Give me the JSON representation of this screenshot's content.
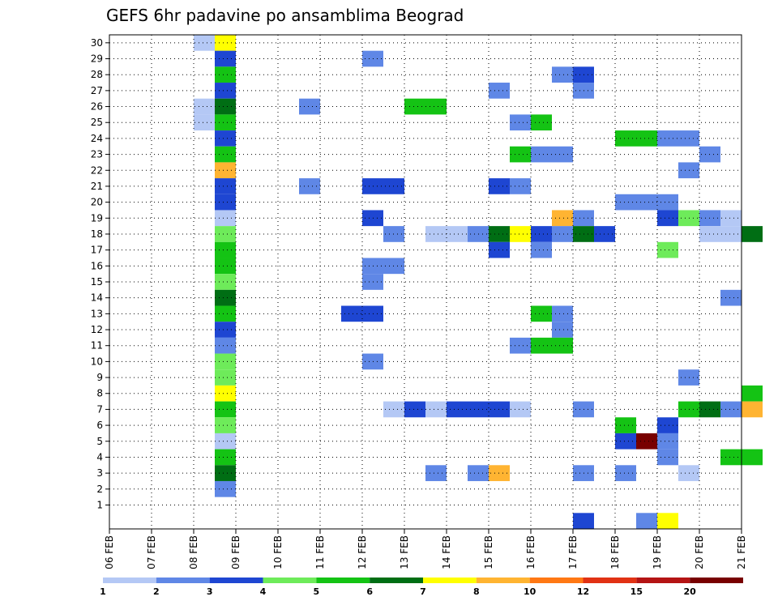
{
  "chart_data": {
    "type": "heatmap",
    "title": "GEFS 6hr padavine po ansamblima Beograd",
    "x_tick_labels": [
      "06 FEB",
      "07 FEB",
      "08 FEB",
      "09 FEB",
      "10 FEB",
      "11 FEB",
      "12 FEB",
      "13 FEB",
      "14 FEB",
      "15 FEB",
      "16 FEB",
      "17 FEB",
      "18 FEB",
      "19 FEB",
      "20 FEB",
      "21 FEB"
    ],
    "y_tick_labels": [
      "1",
      "2",
      "3",
      "4",
      "5",
      "6",
      "7",
      "8",
      "9",
      "10",
      "11",
      "12",
      "13",
      "14",
      "15",
      "16",
      "17",
      "18",
      "19",
      "20",
      "21",
      "22",
      "23",
      "24",
      "25",
      "26",
      "27",
      "28",
      "29",
      "30"
    ],
    "xlim": [
      0,
      60
    ],
    "ylim": [
      -0.5,
      30.5
    ],
    "grid": true,
    "colorbar": {
      "placement": "bottom",
      "labels": [
        "1",
        "2",
        "3",
        "4",
        "5",
        "6",
        "7",
        "8",
        "10",
        "12",
        "15",
        "20"
      ],
      "colors": [
        "#b4c8f5",
        "#5f87e6",
        "#1e46d2",
        "#6eeb5a",
        "#14c314",
        "#006e14",
        "#ffff00",
        "#ffb432",
        "#ff7814",
        "#e13214",
        "#b41414",
        "#780000"
      ]
    },
    "cells": [
      [
        4,
        30,
        1
      ],
      [
        5,
        30,
        7
      ],
      [
        22,
        0,
        3
      ],
      [
        25,
        0,
        2
      ],
      [
        26,
        0,
        7
      ],
      [
        5,
        29,
        3
      ],
      [
        12,
        29,
        2
      ],
      [
        59,
        29,
        6
      ],
      [
        5,
        28,
        5
      ],
      [
        21,
        28,
        2
      ],
      [
        22,
        28,
        3
      ],
      [
        5,
        27,
        3
      ],
      [
        18,
        27,
        2
      ],
      [
        22,
        27,
        2
      ],
      [
        4,
        26,
        1
      ],
      [
        5,
        26,
        6
      ],
      [
        9,
        26,
        2
      ],
      [
        14,
        26,
        5
      ],
      [
        15,
        26,
        5
      ],
      [
        4,
        25,
        1
      ],
      [
        5,
        25,
        5
      ],
      [
        19,
        25,
        2
      ],
      [
        20,
        25,
        5
      ],
      [
        5,
        24,
        3
      ],
      [
        24,
        24,
        5
      ],
      [
        25,
        24,
        5
      ],
      [
        26,
        24,
        2
      ],
      [
        27,
        24,
        2
      ],
      [
        5,
        23,
        5
      ],
      [
        19,
        23,
        5
      ],
      [
        20,
        23,
        2
      ],
      [
        21,
        23,
        2
      ],
      [
        28,
        23,
        2
      ],
      [
        5,
        22,
        8
      ],
      [
        27,
        22,
        2
      ],
      [
        5,
        21,
        3
      ],
      [
        9,
        21,
        2
      ],
      [
        12,
        21,
        3
      ],
      [
        13,
        21,
        3
      ],
      [
        18,
        21,
        3
      ],
      [
        19,
        21,
        2
      ],
      [
        5,
        20,
        3
      ],
      [
        24,
        20,
        2
      ],
      [
        25,
        20,
        2
      ],
      [
        26,
        20,
        2
      ],
      [
        5,
        19,
        1
      ],
      [
        12,
        19,
        3
      ],
      [
        21,
        19,
        8
      ],
      [
        22,
        19,
        2
      ],
      [
        26,
        19,
        3
      ],
      [
        27,
        19,
        4
      ],
      [
        28,
        19,
        2
      ],
      [
        29,
        19,
        1
      ],
      [
        5,
        18,
        4
      ],
      [
        13,
        18,
        2
      ],
      [
        15,
        18,
        1
      ],
      [
        16,
        18,
        1
      ],
      [
        17,
        18,
        2
      ],
      [
        18,
        18,
        6
      ],
      [
        19,
        18,
        7
      ],
      [
        20,
        18,
        3
      ],
      [
        21,
        18,
        2
      ],
      [
        22,
        18,
        6
      ],
      [
        23,
        18,
        3
      ],
      [
        28,
        18,
        1
      ],
      [
        29,
        18,
        1
      ],
      [
        30,
        18,
        6
      ],
      [
        5,
        17,
        5
      ],
      [
        18,
        17,
        3
      ],
      [
        20,
        17,
        2
      ],
      [
        26,
        17,
        4
      ],
      [
        5,
        16,
        5
      ],
      [
        12,
        16,
        2
      ],
      [
        13,
        16,
        2
      ],
      [
        5,
        15,
        4
      ],
      [
        12,
        15,
        2
      ],
      [
        5,
        14,
        6
      ],
      [
        29,
        14,
        2
      ],
      [
        5,
        13,
        5
      ],
      [
        11,
        13,
        3
      ],
      [
        12,
        13,
        3
      ],
      [
        20,
        13,
        5
      ],
      [
        21,
        13,
        2
      ],
      [
        5,
        12,
        3
      ],
      [
        21,
        12,
        2
      ],
      [
        5,
        11,
        2
      ],
      [
        19,
        11,
        2
      ],
      [
        20,
        11,
        5
      ],
      [
        21,
        11,
        5
      ],
      [
        5,
        10,
        4
      ],
      [
        12,
        10,
        2
      ],
      [
        5,
        9,
        4
      ],
      [
        27,
        9,
        2
      ],
      [
        5,
        8,
        7
      ],
      [
        30,
        8,
        5
      ],
      [
        5,
        7,
        5
      ],
      [
        13,
        7,
        1
      ],
      [
        14,
        7,
        3
      ],
      [
        15,
        7,
        1
      ],
      [
        16,
        7,
        3
      ],
      [
        17,
        7,
        3
      ],
      [
        18,
        7,
        3
      ],
      [
        19,
        7,
        1
      ],
      [
        22,
        7,
        2
      ],
      [
        27,
        7,
        5
      ],
      [
        28,
        7,
        6
      ],
      [
        29,
        7,
        2
      ],
      [
        30,
        7,
        8
      ],
      [
        5,
        6,
        4
      ],
      [
        24,
        6,
        5
      ],
      [
        26,
        6,
        3
      ],
      [
        5,
        5,
        1
      ],
      [
        24,
        5,
        3
      ],
      [
        25,
        5,
        12
      ],
      [
        26,
        5,
        2
      ],
      [
        5,
        4,
        5
      ],
      [
        26,
        4,
        2
      ],
      [
        29,
        4,
        5
      ],
      [
        30,
        4,
        5
      ],
      [
        5,
        3,
        6
      ],
      [
        15,
        3,
        2
      ],
      [
        17,
        3,
        2
      ],
      [
        18,
        3,
        8
      ],
      [
        22,
        3,
        2
      ],
      [
        24,
        3,
        2
      ],
      [
        27,
        3,
        1
      ],
      [
        5,
        2,
        2
      ]
    ]
  }
}
